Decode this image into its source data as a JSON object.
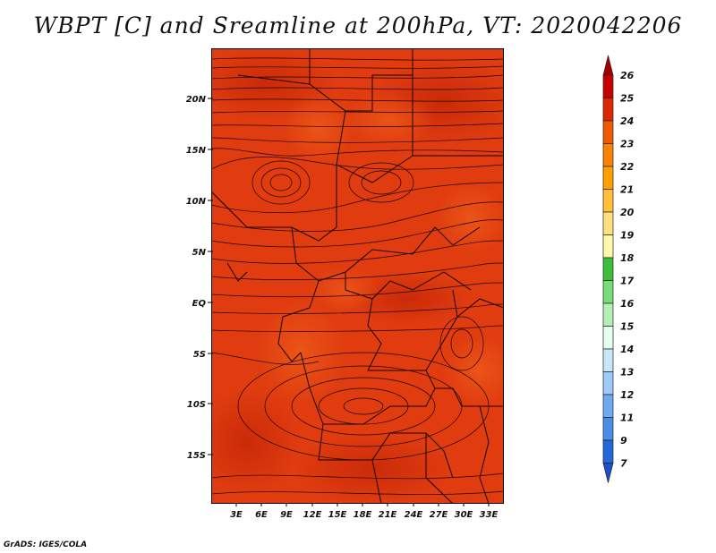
{
  "title": "WBPT [C] and Sreamline at 200hPa, VT: 2020042206",
  "credit": "GrADS: IGES/COLA",
  "map": {
    "lat_labels": [
      "20N",
      "15N",
      "10N",
      "5N",
      "EQ",
      "5S",
      "10S",
      "15S"
    ],
    "lon_labels": [
      "3E",
      "6E",
      "9E",
      "12E",
      "15E",
      "18E",
      "21E",
      "24E",
      "27E",
      "30E",
      "33E"
    ],
    "field_colors": {
      "base": "#e03c10",
      "dark": "#c42606",
      "light": "#ee5a18",
      "streamline": "#1a0600",
      "border": "#140400"
    }
  },
  "colorbar": {
    "labels": [
      "26",
      "25",
      "24",
      "23",
      "22",
      "21",
      "20",
      "19",
      "18",
      "17",
      "16",
      "15",
      "14",
      "13",
      "12",
      "11",
      "9",
      "7"
    ],
    "colors": [
      "#a50000",
      "#c80000",
      "#dc2800",
      "#f05a00",
      "#fa8200",
      "#ffa000",
      "#ffc03c",
      "#ffe080",
      "#fffaaa",
      "#3cbe3c",
      "#78dc78",
      "#b4f0b4",
      "#e6fff0",
      "#c8e6fa",
      "#9ec9f8",
      "#6eaaf2",
      "#4a8ee8",
      "#2468dc",
      "#1e50c8"
    ]
  }
}
